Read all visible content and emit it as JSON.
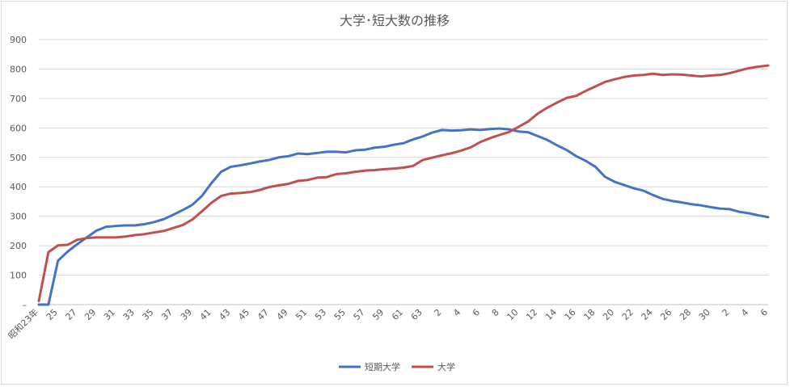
{
  "chart_data": {
    "type": "line",
    "title": "大学･短大数の推移",
    "xlabel": "",
    "ylabel": "",
    "ylim": [
      0,
      900
    ],
    "y_ticks": [
      "–",
      "100",
      "200",
      "300",
      "400",
      "500",
      "600",
      "700",
      "800",
      "900"
    ],
    "grid": true,
    "legend_position": "bottom",
    "categories": [
      "昭和23年",
      "24",
      "25",
      "26",
      "27",
      "28",
      "29",
      "30",
      "31",
      "32",
      "33",
      "34",
      "35",
      "36",
      "37",
      "38",
      "39",
      "40",
      "41",
      "42",
      "43",
      "44",
      "45",
      "46",
      "47",
      "48",
      "49",
      "50",
      "51",
      "52",
      "53",
      "54",
      "55",
      "56",
      "57",
      "58",
      "59",
      "60",
      "61",
      "62",
      "63",
      "元",
      "2",
      "3",
      "4",
      "5",
      "6",
      "7",
      "8",
      "9",
      "10",
      "11",
      "12",
      "13",
      "14",
      "15",
      "16",
      "17",
      "18",
      "19",
      "20",
      "21",
      "22",
      "23",
      "24",
      "25",
      "26",
      "27",
      "28",
      "29",
      "30",
      "元",
      "2",
      "3",
      "4",
      "5",
      "6"
    ],
    "tick_labels": [
      "昭和23年",
      "25",
      "27",
      "29",
      "31",
      "33",
      "35",
      "37",
      "39",
      "41",
      "43",
      "45",
      "47",
      "49",
      "51",
      "53",
      "55",
      "57",
      "59",
      "61",
      "63",
      "2",
      "4",
      "6",
      "8",
      "10",
      "12",
      "14",
      "16",
      "18",
      "20",
      "22",
      "24",
      "26",
      "28",
      "30",
      "2",
      "4",
      "6"
    ],
    "series": [
      {
        "name": "短期大学",
        "color": "#4472c4",
        "values": [
          0,
          0,
          149,
          180,
          205,
          228,
          251,
          264,
          267,
          269,
          269,
          273,
          280,
          290,
          305,
          321,
          339,
          369,
          413,
          451,
          468,
          473,
          479,
          486,
          491,
          500,
          504,
          513,
          511,
          515,
          519,
          519,
          517,
          524,
          526,
          533,
          536,
          543,
          548,
          561,
          571,
          584,
          593,
          591,
          592,
          595,
          593,
          596,
          598,
          595,
          588,
          585,
          572,
          559,
          541,
          525,
          504,
          488,
          468,
          434,
          417,
          406,
          395,
          387,
          372,
          359,
          352,
          347,
          341,
          337,
          331,
          326,
          324,
          315,
          310,
          303,
          297
        ]
      },
      {
        "name": "大学",
        "color": "#c0504d",
        "values": [
          12,
          178,
          201,
          203,
          220,
          226,
          228,
          228,
          228,
          231,
          236,
          239,
          245,
          250,
          260,
          270,
          289,
          317,
          346,
          369,
          377,
          379,
          382,
          389,
          399,
          405,
          410,
          420,
          423,
          431,
          433,
          443,
          446,
          451,
          455,
          457,
          460,
          462,
          465,
          471,
          491,
          499,
          507,
          514,
          523,
          534,
          552,
          565,
          576,
          586,
          604,
          622,
          649,
          669,
          686,
          702,
          709,
          726,
          741,
          756,
          765,
          773,
          778,
          780,
          784,
          780,
          782,
          781,
          778,
          775,
          778,
          780,
          786,
          795,
          803,
          808,
          812
        ]
      }
    ]
  }
}
